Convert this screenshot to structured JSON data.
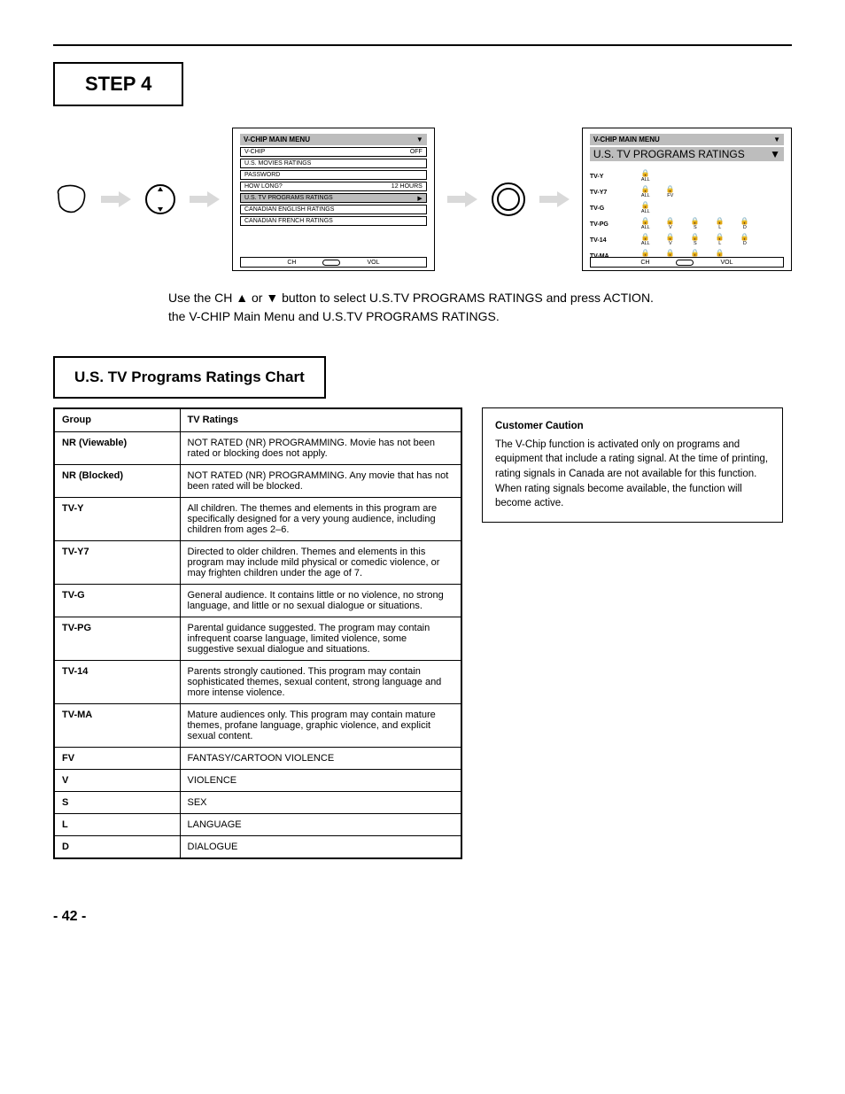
{
  "section": {
    "step_label": "STEP 4",
    "instr_line1": "Use the CH ▲ or ▼ button to select U.S.TV PROGRAMS RATINGS and press ACTION.",
    "instr_line2": "the V-CHIP Main Menu and U.S.TV PROGRAMS RATINGS.",
    "table_heading": "U.S. TV Programs Ratings Chart",
    "page_footer": "- 42 -"
  },
  "osd1": {
    "title": "V-CHIP   MAIN MENU",
    "items": [
      {
        "label": "V-CHIP",
        "val": "OFF"
      },
      {
        "label": "U.S. MOVIES RATINGS",
        "val": ""
      },
      {
        "label": "PASSWORD",
        "val": ""
      },
      {
        "label": "HOW LONG?",
        "val": "12 HOURS"
      },
      {
        "label": "U.S. TV PROGRAMS RATINGS",
        "val": "▶",
        "selected": true
      },
      {
        "label": "CANADIAN  ENGLISH RATINGS",
        "val": ""
      },
      {
        "label": "CANADIAN  FRENCH RATINGS",
        "val": ""
      }
    ],
    "foot_left": "CH",
    "foot_right": "VOL"
  },
  "osd2": {
    "title": "V-CHIP   MAIN MENU",
    "subtitle": "U.S. TV   PROGRAMS RATINGS",
    "rows": [
      {
        "label": "TV-Y",
        "cells": [
          {
            "letter": "ALL"
          }
        ],
        "spread": false,
        "rightoffset": true
      },
      {
        "label": "TV-Y7",
        "cells": [
          {
            "letter": "ALL"
          },
          {
            "letter": "FV"
          }
        ],
        "spread": false
      },
      {
        "label": "TV-G",
        "cells": [
          {
            "letter": "ALL"
          }
        ],
        "spread": false
      },
      {
        "label": "TV-PG",
        "cells": [
          {
            "letter": "ALL"
          },
          {
            "letter": "V"
          },
          {
            "letter": "S"
          },
          {
            "letter": "L"
          },
          {
            "letter": "D"
          }
        ],
        "spread": true
      },
      {
        "label": "TV-14",
        "cells": [
          {
            "letter": "ALL"
          },
          {
            "letter": "V"
          },
          {
            "letter": "S"
          },
          {
            "letter": "L"
          },
          {
            "letter": "D"
          }
        ],
        "spread": true
      },
      {
        "label": "TV-MA",
        "cells": [
          {
            "letter": "ALL"
          },
          {
            "letter": "V"
          },
          {
            "letter": "S"
          },
          {
            "letter": "L"
          }
        ],
        "spread": true
      }
    ],
    "foot_left": "CH",
    "foot_right": "VOL"
  },
  "ratings_table": {
    "headers": [
      "Group",
      "TV Ratings"
    ],
    "rows": [
      {
        "g": "NR (Viewable)",
        "d": "NOT RATED (NR) PROGRAMMING. Movie has not been rated or blocking does not apply."
      },
      {
        "g": "NR (Blocked)",
        "d": "NOT RATED (NR) PROGRAMMING. Any movie that has not been rated will be blocked."
      },
      {
        "g": "TV-Y",
        "d": "All children. The themes and elements in this program are specifically designed for a very young audience, including children from ages 2–6."
      },
      {
        "g": "TV-Y7",
        "d": "Directed to older children. Themes and elements in this program may include mild physical or comedic violence, or may frighten children under the age of 7."
      },
      {
        "g": "TV-G",
        "d": "General audience. It contains little or no violence, no strong language, and little or no sexual dialogue or situations."
      },
      {
        "g": "TV-PG",
        "d": "Parental guidance suggested. The program may contain infrequent coarse language, limited violence, some suggestive sexual dialogue and situations."
      },
      {
        "g": "TV-14",
        "d": "Parents strongly cautioned. This program may contain sophisticated themes, sexual content, strong language and more intense violence."
      },
      {
        "g": "TV-MA",
        "d": "Mature audiences only. This program may contain mature themes, profane language, graphic violence, and explicit sexual content."
      },
      {
        "g": "FV",
        "d": "FANTASY/CARTOON VIOLENCE"
      },
      {
        "g": "V",
        "d": "VIOLENCE"
      },
      {
        "g": "S",
        "d": "SEX"
      },
      {
        "g": "L",
        "d": "LANGUAGE"
      },
      {
        "g": "D",
        "d": "DIALOGUE"
      }
    ]
  },
  "canada_box": {
    "heading": "Customer Caution",
    "body": "The V-Chip function is activated only on programs and equipment that include a rating signal. At the time of printing, rating signals in Canada are not available for this function. When rating signals become available, the function will become active."
  }
}
